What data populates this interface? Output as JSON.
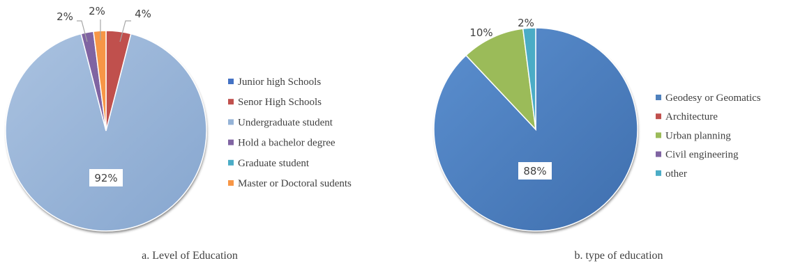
{
  "chart_data": [
    {
      "type": "pie",
      "caption": "a. Level of Education",
      "categories": [
        "Junior high Schools",
        "Senor High Schools",
        "Undergraduate student",
        "Hold a bachelor degree",
        "Graduate student",
        "Master or Doctoral sudents"
      ],
      "values": [
        0,
        4,
        92,
        2,
        0,
        2
      ],
      "colors": [
        "#4472c4",
        "#c0504d",
        "#95b3d7",
        "#8064a2",
        "#4bacc6",
        "#f79646"
      ],
      "labels": [
        "",
        "4%",
        "92%",
        "2%",
        "",
        "2%"
      ],
      "legend_position": "right"
    },
    {
      "type": "pie",
      "caption": "b. type of education",
      "categories": [
        "Geodesy or Geomatics",
        "Architecture",
        "Urban planning",
        "Civil engineering",
        "other"
      ],
      "values": [
        88,
        0,
        10,
        0,
        2
      ],
      "colors": [
        "#4f81bd",
        "#c0504d",
        "#9bbb59",
        "#8064a2",
        "#4bacc6"
      ],
      "labels": [
        "88%",
        "",
        "10%",
        "",
        "2%"
      ],
      "legend_position": "right"
    }
  ]
}
